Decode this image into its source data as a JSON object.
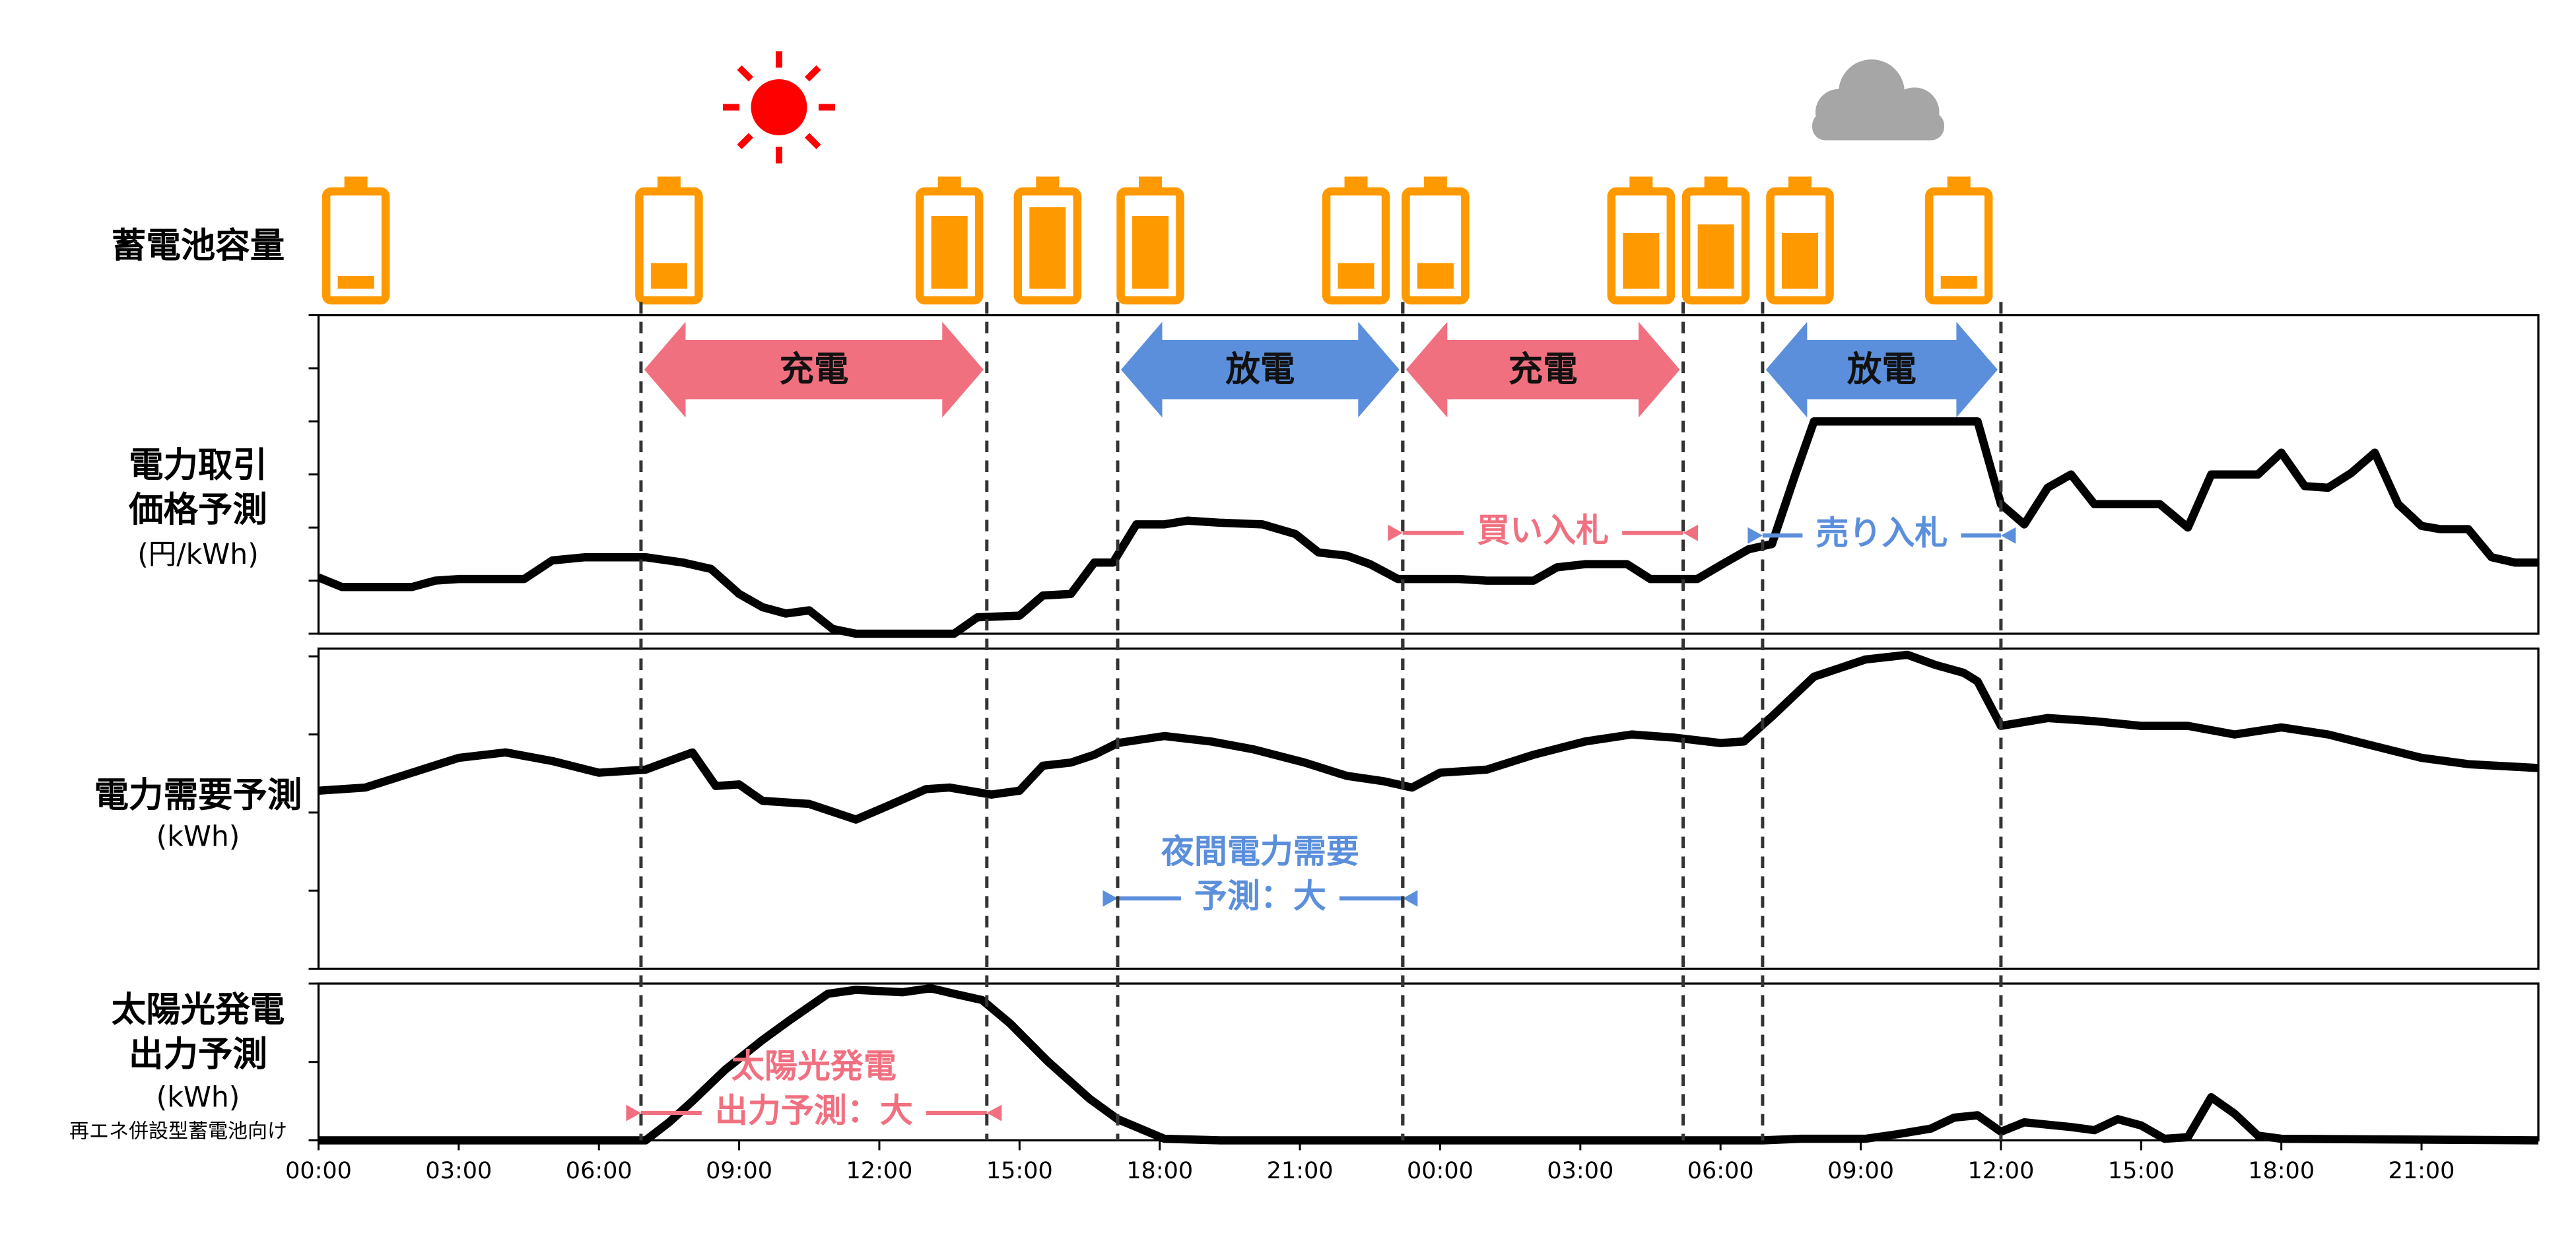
{
  "battery": {
    "label": "蓄電池容量",
    "color": "#ff9900",
    "x": [
      0.8,
      7.5,
      13.5,
      15.6,
      17.8,
      22.2,
      23.9,
      28.3,
      29.9,
      31.7,
      35.1
    ],
    "levels": [
      15,
      30,
      85,
      95,
      85,
      30,
      30,
      65,
      75,
      65,
      15
    ]
  },
  "phases": [
    {
      "label": "充電",
      "start": 6.9,
      "end": 14.3,
      "color": "#f07080"
    },
    {
      "label": "放電",
      "start": 17.1,
      "end": 23.2,
      "color": "#5b8fdb"
    },
    {
      "label": "充電",
      "start": 23.2,
      "end": 29.2,
      "color": "#f07080"
    },
    {
      "label": "放電",
      "start": 30.9,
      "end": 36.0,
      "color": "#5b8fdb"
    }
  ],
  "chart_data": [
    {
      "type": "line",
      "label_lines": [
        "電力取引",
        "価格予測",
        "(円/kWh)"
      ],
      "color": "#000000",
      "xlim": [
        0,
        47.5
      ],
      "ylim": [
        0,
        6
      ],
      "yticks": [
        0,
        1,
        2,
        3,
        4,
        5,
        6
      ],
      "x": [
        0,
        0.5,
        2.0,
        2.5,
        3.0,
        4.4,
        5.0,
        5.7,
        7.0,
        7.8,
        8.4,
        9.0,
        9.5,
        10.0,
        10.5,
        11.0,
        11.5,
        13.6,
        14.1,
        15.0,
        15.5,
        16.1,
        16.6,
        17.0,
        17.5,
        18.1,
        18.6,
        19.3,
        20.2,
        20.9,
        21.4,
        22.0,
        22.5,
        23.1,
        24.4,
        25.0,
        26.0,
        26.5,
        27.1,
        28.0,
        28.5,
        29.5,
        30.1,
        30.6,
        31.1,
        31.6,
        32.0,
        35.5,
        36.0,
        36.5,
        37.0,
        37.5,
        38.0,
        39.4,
        40.0,
        40.5,
        41.5,
        42.0,
        42.5,
        43.0,
        43.5,
        44.0,
        44.5,
        45.0,
        45.4,
        46.0,
        46.5,
        47.0,
        47.5
      ],
      "values": [
        1.06,
        0.88,
        0.88,
        1.0,
        1.03,
        1.03,
        1.38,
        1.44,
        1.44,
        1.34,
        1.22,
        0.75,
        0.5,
        0.38,
        0.44,
        0.09,
        0,
        0,
        0.31,
        0.34,
        0.72,
        0.75,
        1.34,
        1.34,
        2.06,
        2.06,
        2.13,
        2.09,
        2.06,
        1.88,
        1.53,
        1.47,
        1.31,
        1.03,
        1.03,
        1.0,
        1.0,
        1.25,
        1.31,
        1.31,
        1.03,
        1.03,
        1.34,
        1.59,
        1.69,
        3.0,
        4.0,
        4.0,
        2.44,
        2.06,
        2.75,
        3.0,
        2.44,
        2.44,
        2.0,
        3.0,
        3.0,
        3.41,
        2.78,
        2.75,
        3.03,
        3.41,
        2.44,
        2.03,
        1.97,
        1.97,
        1.44,
        1.34,
        1.34
      ],
      "annotations": [
        {
          "lines": [
            "買い入札"
          ],
          "start": 23.2,
          "end": 29.2,
          "y": 1.9,
          "color": "#f07080"
        },
        {
          "lines": [
            "売り入札"
          ],
          "start": 30.9,
          "end": 36.0,
          "y": 1.85,
          "color": "#5b8fdb"
        }
      ]
    },
    {
      "type": "line",
      "label_lines": [
        "電力需要予測",
        "(kWh)"
      ],
      "color": "#000000",
      "xlim": [
        0,
        47.5
      ],
      "ylim": [
        0,
        4.1
      ],
      "yticks": [
        0,
        1,
        2,
        3,
        4
      ],
      "x": [
        0,
        1.0,
        2.0,
        3.0,
        4.0,
        5.0,
        6.0,
        7.0,
        8.0,
        8.5,
        9.0,
        9.5,
        10.5,
        11.5,
        12.2,
        13.0,
        13.5,
        14.4,
        15.0,
        15.5,
        16.1,
        16.6,
        17.1,
        18.1,
        19.1,
        20.0,
        21.1,
        22.0,
        22.8,
        23.4,
        24.0,
        25.0,
        26.0,
        27.1,
        28.1,
        29.0,
        30.0,
        30.5,
        31.1,
        32.0,
        33.1,
        34.0,
        34.6,
        35.2,
        35.5,
        36.0,
        37.0,
        38.0,
        39.0,
        40.0,
        41.0,
        42.0,
        43.0,
        44.0,
        45.0,
        46.0,
        47.5
      ],
      "values": [
        2.28,
        2.32,
        2.51,
        2.7,
        2.77,
        2.66,
        2.51,
        2.55,
        2.77,
        2.34,
        2.36,
        2.15,
        2.11,
        1.91,
        2.09,
        2.3,
        2.32,
        2.23,
        2.28,
        2.6,
        2.64,
        2.74,
        2.89,
        2.98,
        2.91,
        2.81,
        2.64,
        2.47,
        2.4,
        2.32,
        2.51,
        2.55,
        2.74,
        2.91,
        3.0,
        2.96,
        2.89,
        2.91,
        3.23,
        3.74,
        3.96,
        4.02,
        3.89,
        3.79,
        3.68,
        3.11,
        3.21,
        3.17,
        3.11,
        3.11,
        3.0,
        3.09,
        3.0,
        2.85,
        2.7,
        2.62,
        2.57
      ],
      "annotations": [
        {
          "lines": [
            "夜間電力需要",
            "予測：大"
          ],
          "start": 17.1,
          "end": 23.2,
          "y": 0.9,
          "color": "#5b8fdb"
        }
      ]
    },
    {
      "type": "line",
      "label_lines": [
        "太陽光発電",
        "出力予測",
        "(kWh)"
      ],
      "note": "再エネ併設型蓄電池向け",
      "color": "#000000",
      "xlim": [
        0,
        47.5
      ],
      "ylim": [
        0,
        2
      ],
      "yticks": [
        0,
        1,
        2
      ],
      "xticks": [
        {
          "value": 0,
          "label": "00:00"
        },
        {
          "value": 3,
          "label": "03:00"
        },
        {
          "value": 6,
          "label": "06:00"
        },
        {
          "value": 9,
          "label": "09:00"
        },
        {
          "value": 12,
          "label": "12:00"
        },
        {
          "value": 15,
          "label": "15:00"
        },
        {
          "value": 18,
          "label": "18:00"
        },
        {
          "value": 21,
          "label": "21:00"
        },
        {
          "value": 24,
          "label": "00:00"
        },
        {
          "value": 27,
          "label": "03:00"
        },
        {
          "value": 30,
          "label": "06:00"
        },
        {
          "value": 33,
          "label": "09:00"
        },
        {
          "value": 36,
          "label": "12:00"
        },
        {
          "value": 39,
          "label": "15:00"
        },
        {
          "value": 42,
          "label": "18:00"
        },
        {
          "value": 45,
          "label": "21:00"
        }
      ],
      "x": [
        0,
        7.0,
        7.5,
        8.0,
        8.7,
        9.5,
        10.1,
        10.9,
        11.5,
        12.5,
        13.1,
        13.6,
        14.2,
        14.8,
        15.6,
        16.5,
        17.1,
        18.1,
        19.3,
        30.9,
        31.7,
        33.1,
        33.8,
        34.5,
        35.0,
        35.5,
        36.0,
        36.5,
        37.5,
        38.0,
        38.5,
        39.0,
        39.5,
        40.0,
        40.5,
        41.0,
        41.5,
        42.0,
        47.5
      ],
      "values": [
        0,
        0,
        0.23,
        0.5,
        0.9,
        1.28,
        1.54,
        1.87,
        1.92,
        1.89,
        1.94,
        1.87,
        1.79,
        1.49,
        1.01,
        0.53,
        0.27,
        0.02,
        0,
        0,
        0.02,
        0.02,
        0.08,
        0.15,
        0.29,
        0.32,
        0.11,
        0.23,
        0.17,
        0.13,
        0.27,
        0.19,
        0.02,
        0.04,
        0.55,
        0.34,
        0.06,
        0.02,
        0
      ],
      "annotations": [
        {
          "lines": [
            "太陽光発電",
            "出力予測：大"
          ],
          "start": 6.9,
          "end": 14.3,
          "y": 0.35,
          "color": "#f07080"
        }
      ]
    }
  ]
}
